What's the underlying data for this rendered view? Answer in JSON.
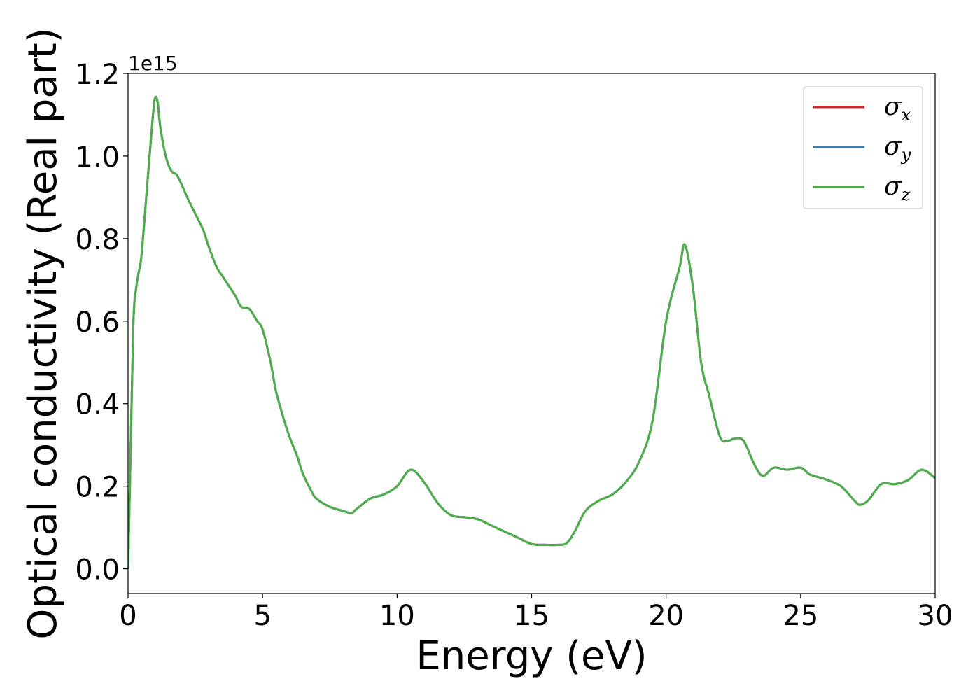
{
  "chart_data": {
    "type": "line",
    "xlabel": "Energy (eV)",
    "ylabel": "Optical conductivity (Real part)",
    "y_offset_text": "1e15",
    "y_scale_factor": 1000000000000000.0,
    "xlim": [
      0,
      30
    ],
    "ylim": [
      -0.06,
      1.2
    ],
    "x_ticks": [
      0,
      5,
      10,
      15,
      20,
      25,
      30
    ],
    "x_tick_labels": [
      "0",
      "5",
      "10",
      "15",
      "20",
      "25",
      "30"
    ],
    "y_ticks": [
      0.0,
      0.2,
      0.4,
      0.6,
      0.8,
      1.0,
      1.2
    ],
    "y_tick_labels": [
      "0.0",
      "0.2",
      "0.4",
      "0.6",
      "0.8",
      "1.0",
      "1.2"
    ],
    "grid": false,
    "legend_position": "top-right",
    "x": [
      0,
      0.1,
      0.2,
      0.3,
      0.4,
      0.5,
      0.7,
      0.9,
      1.0,
      1.1,
      1.2,
      1.4,
      1.6,
      1.8,
      2.0,
      2.2,
      2.5,
      2.8,
      3.0,
      3.3,
      3.5,
      3.8,
      4.0,
      4.2,
      4.5,
      4.8,
      5.0,
      5.3,
      5.5,
      5.8,
      6.0,
      6.3,
      6.5,
      6.8,
      7.0,
      7.5,
      8.0,
      8.3,
      8.5,
      9.0,
      9.5,
      10.0,
      10.5,
      11.0,
      11.5,
      12.0,
      12.5,
      13.0,
      13.5,
      14.0,
      14.5,
      15.0,
      15.5,
      16.0,
      16.3,
      16.6,
      17.0,
      17.5,
      18.0,
      18.5,
      19.0,
      19.5,
      20.0,
      20.5,
      20.7,
      21.0,
      21.3,
      21.6,
      22.0,
      22.3,
      22.5,
      22.8,
      23.0,
      23.3,
      23.6,
      24.0,
      24.5,
      25.0,
      25.3,
      25.5,
      26.0,
      26.5,
      27.0,
      27.2,
      27.5,
      28.0,
      28.5,
      29.0,
      29.5,
      30.0
    ],
    "series": [
      {
        "name": "x",
        "color": "#d62728",
        "values": [
          0.0,
          0.3,
          0.6,
          0.68,
          0.72,
          0.76,
          0.92,
          1.08,
          1.14,
          1.13,
          1.07,
          1.0,
          0.965,
          0.955,
          0.93,
          0.9,
          0.86,
          0.82,
          0.78,
          0.73,
          0.71,
          0.68,
          0.66,
          0.635,
          0.63,
          0.6,
          0.58,
          0.5,
          0.43,
          0.36,
          0.32,
          0.27,
          0.23,
          0.19,
          0.17,
          0.15,
          0.14,
          0.135,
          0.145,
          0.17,
          0.18,
          0.2,
          0.24,
          0.21,
          0.16,
          0.13,
          0.125,
          0.12,
          0.105,
          0.09,
          0.075,
          0.06,
          0.058,
          0.058,
          0.062,
          0.09,
          0.14,
          0.165,
          0.18,
          0.21,
          0.26,
          0.36,
          0.6,
          0.73,
          0.785,
          0.68,
          0.5,
          0.42,
          0.32,
          0.31,
          0.315,
          0.315,
          0.295,
          0.25,
          0.225,
          0.245,
          0.24,
          0.245,
          0.23,
          0.225,
          0.215,
          0.2,
          0.165,
          0.155,
          0.165,
          0.205,
          0.205,
          0.215,
          0.24,
          0.22
        ]
      },
      {
        "name": "y",
        "color": "#377eb8",
        "values": [
          0.0,
          0.3,
          0.6,
          0.68,
          0.72,
          0.76,
          0.92,
          1.08,
          1.14,
          1.13,
          1.07,
          1.0,
          0.965,
          0.955,
          0.93,
          0.9,
          0.86,
          0.82,
          0.78,
          0.73,
          0.71,
          0.68,
          0.66,
          0.635,
          0.63,
          0.6,
          0.58,
          0.5,
          0.43,
          0.36,
          0.32,
          0.27,
          0.23,
          0.19,
          0.17,
          0.15,
          0.14,
          0.135,
          0.145,
          0.17,
          0.18,
          0.2,
          0.24,
          0.21,
          0.16,
          0.13,
          0.125,
          0.12,
          0.105,
          0.09,
          0.075,
          0.06,
          0.058,
          0.058,
          0.062,
          0.09,
          0.14,
          0.165,
          0.18,
          0.21,
          0.26,
          0.36,
          0.6,
          0.73,
          0.785,
          0.68,
          0.5,
          0.42,
          0.32,
          0.31,
          0.315,
          0.315,
          0.295,
          0.25,
          0.225,
          0.245,
          0.24,
          0.245,
          0.23,
          0.225,
          0.215,
          0.2,
          0.165,
          0.155,
          0.165,
          0.205,
          0.205,
          0.215,
          0.24,
          0.22
        ]
      },
      {
        "name": "z",
        "color": "#4daf4a",
        "values": [
          0.0,
          0.3,
          0.6,
          0.68,
          0.72,
          0.76,
          0.92,
          1.08,
          1.14,
          1.13,
          1.07,
          1.0,
          0.965,
          0.955,
          0.93,
          0.9,
          0.86,
          0.82,
          0.78,
          0.73,
          0.71,
          0.68,
          0.66,
          0.635,
          0.63,
          0.6,
          0.58,
          0.5,
          0.43,
          0.36,
          0.32,
          0.27,
          0.23,
          0.19,
          0.17,
          0.15,
          0.14,
          0.135,
          0.145,
          0.17,
          0.18,
          0.2,
          0.24,
          0.21,
          0.16,
          0.13,
          0.125,
          0.12,
          0.105,
          0.09,
          0.075,
          0.06,
          0.058,
          0.058,
          0.062,
          0.09,
          0.14,
          0.165,
          0.18,
          0.21,
          0.26,
          0.36,
          0.6,
          0.73,
          0.785,
          0.68,
          0.5,
          0.42,
          0.32,
          0.31,
          0.315,
          0.315,
          0.295,
          0.25,
          0.225,
          0.245,
          0.24,
          0.245,
          0.23,
          0.225,
          0.215,
          0.2,
          0.165,
          0.155,
          0.165,
          0.205,
          0.205,
          0.215,
          0.24,
          0.22
        ]
      }
    ],
    "legend": [
      {
        "symbol": "σ",
        "sub": "x",
        "color": "#d62728"
      },
      {
        "symbol": "σ",
        "sub": "y",
        "color": "#377eb8"
      },
      {
        "symbol": "σ",
        "sub": "z",
        "color": "#4daf4a"
      }
    ]
  }
}
